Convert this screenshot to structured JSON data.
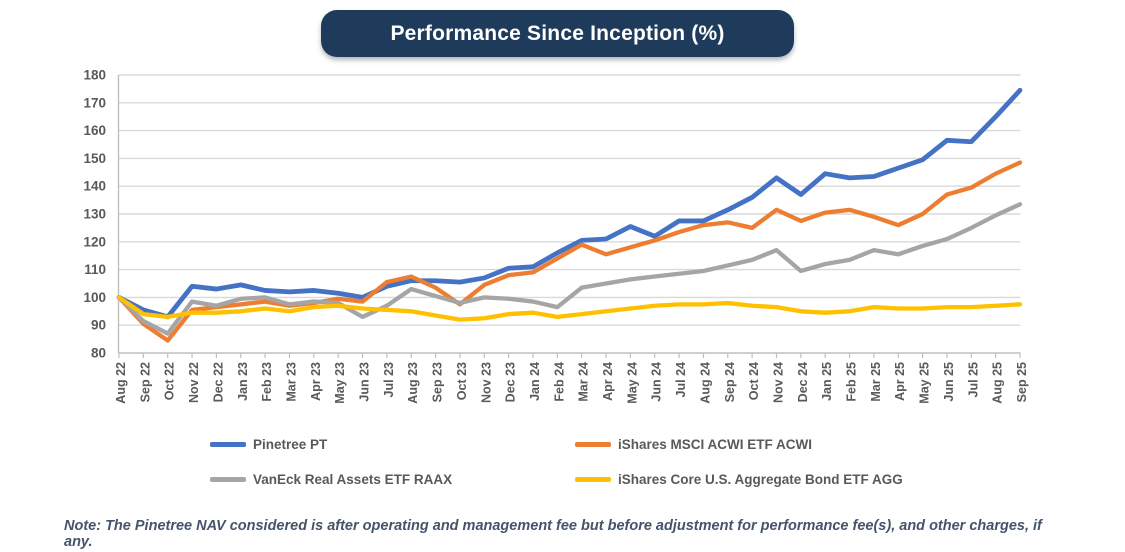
{
  "title": "Performance Since Inception (%)",
  "note": "Note: The Pinetree NAV considered is after operating and management fee but before adjustment for performance fee(s), and other charges, if any.",
  "colors": {
    "title_bg": "#1F3B5C",
    "title_text": "#FFFFFF",
    "axis_text": "#595959",
    "gridline": "#D9D9D9",
    "axis_line": "#BFBFBF",
    "note_text": "#44546A",
    "legend_text": "#595959"
  },
  "chart_data": {
    "type": "line",
    "title": "Performance Since Inception (%)",
    "xlabel": "",
    "ylabel": "",
    "ylim": [
      80,
      180
    ],
    "y_ticks": [
      80,
      90,
      100,
      110,
      120,
      130,
      140,
      150,
      160,
      170,
      180
    ],
    "grid": true,
    "legend_position": "bottom",
    "x_labels": [
      "Aug 22",
      "Sep 22",
      "Oct 22",
      "Nov 22",
      "Dec 22",
      "Jan 23",
      "Feb 23",
      "Mar 23",
      "Apr 23",
      "May 23",
      "Jun 23",
      "Jul 23",
      "Aug 23",
      "Sep 23",
      "Oct 23",
      "Nov 23",
      "Dec 23",
      "Jan 24",
      "Feb 24",
      "Mar 24",
      "Apr 24",
      "May 24",
      "Jun 24",
      "Jul 24",
      "Aug 24",
      "Sep 24",
      "Oct 24",
      "Nov 24",
      "Dec 24",
      "Jan 25",
      "Feb 25",
      "Mar 25",
      "Apr 25",
      "May 25",
      "Jun 25",
      "Jul 25",
      "Aug 25",
      "Sep 25"
    ],
    "series": [
      {
        "name": "Pinetree PT",
        "color": "#4472C4",
        "width": 4.8,
        "values": [
          100,
          95.5,
          93,
          104,
          103,
          104.5,
          102.5,
          102,
          102.5,
          101.5,
          100,
          104,
          106,
          106,
          105.5,
          107,
          110.5,
          111,
          116,
          120.5,
          121,
          125.5,
          122,
          127.5,
          127.5,
          131.5,
          136,
          143,
          137,
          144.5,
          143,
          143.5,
          146.5,
          149.5,
          156.5,
          156,
          165,
          174.5
        ]
      },
      {
        "name": "iShares MSCI ACWI ETF ACWI",
        "color": "#ED7D31",
        "width": 4.3,
        "values": [
          100,
          90.5,
          84.5,
          95.5,
          96.5,
          97.5,
          98.5,
          97,
          98,
          99.5,
          98.5,
          105.5,
          107.5,
          103.5,
          97.5,
          104.5,
          108,
          109,
          114,
          119,
          115.5,
          118,
          120.5,
          123.5,
          126,
          127,
          125,
          131.5,
          127.5,
          130.5,
          131.5,
          129,
          126,
          130,
          137,
          139.5,
          144.5,
          148.5
        ]
      },
      {
        "name": "VanEck Real Assets ETF RAAX",
        "color": "#A5A5A5",
        "width": 4.3,
        "values": [
          100,
          91.5,
          87,
          98.5,
          97,
          99.5,
          100,
          97.5,
          98.5,
          98,
          93,
          97,
          103,
          100.5,
          98,
          100,
          99.5,
          98.5,
          96.5,
          103.5,
          105,
          106.5,
          107.5,
          108.5,
          109.5,
          111.5,
          113.5,
          117,
          109.5,
          112,
          113.5,
          117,
          115.5,
          118.5,
          121,
          125,
          129.5,
          133.5
        ]
      },
      {
        "name": "iShares Core U.S. Aggregate Bond ETF AGG",
        "color": "#FFC000",
        "width": 4.3,
        "values": [
          100,
          94,
          93,
          94.5,
          94.5,
          95,
          96,
          95,
          96.5,
          97,
          96,
          95.5,
          95,
          93.5,
          92,
          92.5,
          94,
          94.5,
          93,
          94,
          95,
          96,
          97,
          97.5,
          97.5,
          98,
          97,
          96.5,
          95,
          94.5,
          95,
          96.5,
          96,
          96,
          96.5,
          96.5,
          97,
          97.5
        ]
      }
    ]
  }
}
